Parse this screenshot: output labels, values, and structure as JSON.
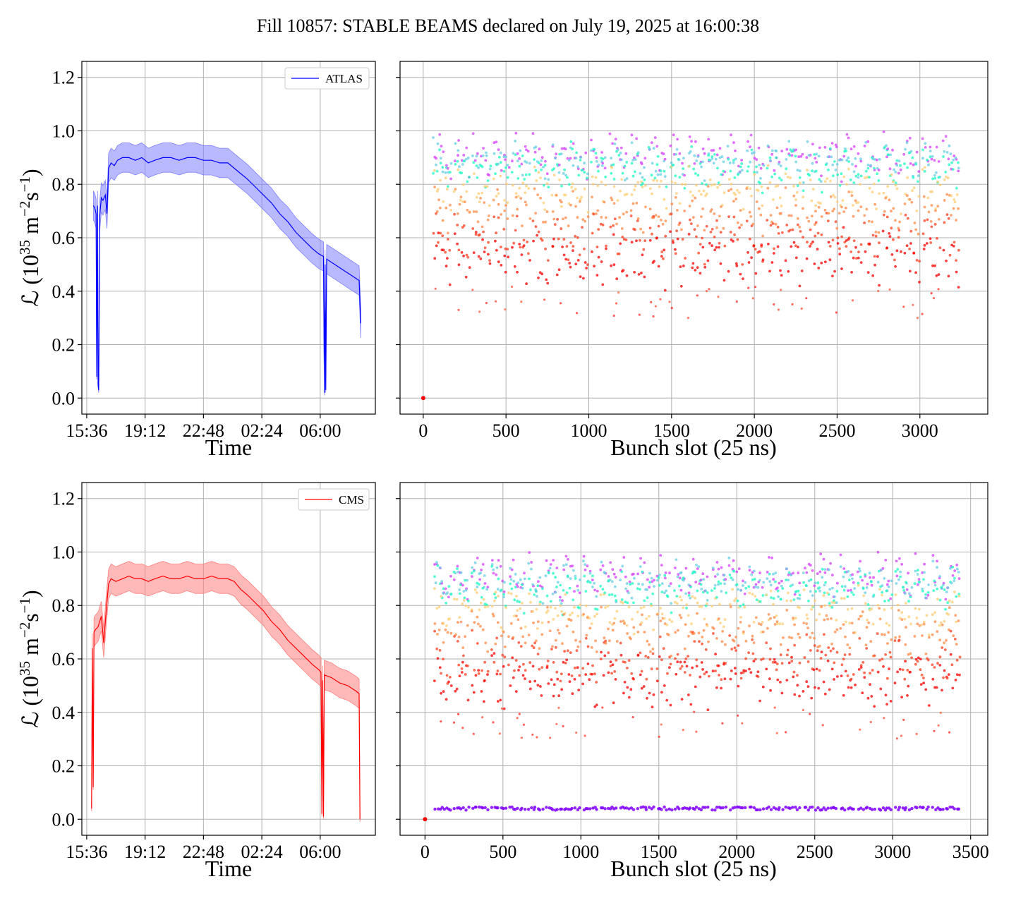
{
  "title": "Fill 10857: STABLE BEAMS declared on July 19, 2025 at 16:00:38",
  "chart_data": [
    {
      "id": "atlas-time",
      "type": "line",
      "series_name": "ATLAS",
      "color": "#0000ff",
      "band_color": "#8080ff",
      "xlabel": "Time",
      "ylabel": "ℒ (10",
      "ylabel_exp": "35",
      "ylabel_unit": " m",
      "ylabel_exp2": "−2",
      "ylabel_unit2": "s",
      "ylabel_exp3": "−1",
      "ylabel_close": ")",
      "xticks": [
        "15:36",
        "19:12",
        "22:48",
        "02:24",
        "06:00"
      ],
      "xtick_hours": [
        15.6,
        19.2,
        22.8,
        26.4,
        30.0
      ],
      "xlim_hours": [
        15.3,
        33.4
      ],
      "yticks": [
        "0.0",
        "0.2",
        "0.4",
        "0.6",
        "0.8",
        "1.0",
        "1.2"
      ],
      "ylim": [
        -0.06,
        1.26
      ],
      "grid": true,
      "legend": "top-right",
      "points": [
        [
          16.02,
          0.72
        ],
        [
          16.1,
          0.71
        ],
        [
          16.18,
          0.69
        ],
        [
          16.22,
          0.08
        ],
        [
          16.27,
          0.72
        ],
        [
          16.3,
          0.05
        ],
        [
          16.34,
          0.03
        ],
        [
          16.4,
          0.68
        ],
        [
          16.5,
          0.75
        ],
        [
          16.6,
          0.74
        ],
        [
          16.75,
          0.76
        ],
        [
          16.85,
          0.69
        ],
        [
          16.95,
          0.86
        ],
        [
          17.1,
          0.88
        ],
        [
          17.3,
          0.87
        ],
        [
          17.5,
          0.89
        ],
        [
          17.8,
          0.9
        ],
        [
          18.2,
          0.9
        ],
        [
          18.6,
          0.89
        ],
        [
          19.0,
          0.9
        ],
        [
          19.4,
          0.88
        ],
        [
          19.8,
          0.89
        ],
        [
          20.3,
          0.9
        ],
        [
          20.8,
          0.9
        ],
        [
          21.3,
          0.89
        ],
        [
          21.8,
          0.9
        ],
        [
          22.3,
          0.9
        ],
        [
          22.8,
          0.89
        ],
        [
          23.3,
          0.89
        ],
        [
          23.8,
          0.88
        ],
        [
          24.3,
          0.88
        ],
        [
          24.7,
          0.86
        ],
        [
          25.1,
          0.84
        ],
        [
          25.5,
          0.82
        ],
        [
          26.0,
          0.79
        ],
        [
          26.5,
          0.76
        ],
        [
          27.0,
          0.73
        ],
        [
          27.5,
          0.69
        ],
        [
          28.0,
          0.66
        ],
        [
          28.5,
          0.62
        ],
        [
          29.0,
          0.59
        ],
        [
          29.5,
          0.56
        ],
        [
          29.9,
          0.54
        ],
        [
          30.2,
          0.53
        ],
        [
          30.26,
          0.02
        ],
        [
          30.3,
          0.5
        ],
        [
          30.34,
          0.03
        ],
        [
          30.4,
          0.52
        ],
        [
          30.9,
          0.5
        ],
        [
          31.4,
          0.48
        ],
        [
          31.9,
          0.46
        ],
        [
          32.4,
          0.44
        ],
        [
          32.5,
          0.28
        ]
      ],
      "band_halfwidth": 0.055
    },
    {
      "id": "atlas-bunch",
      "type": "scatter",
      "xlabel": "Bunch slot (25 ns)",
      "xticks": [
        "0",
        "500",
        "1000",
        "1500",
        "2000",
        "2500",
        "3000"
      ],
      "xtick_values": [
        0,
        500,
        1000,
        1500,
        2000,
        2500,
        3000
      ],
      "xlim": [
        -140,
        3410
      ],
      "ylim": [
        -0.06,
        1.26
      ],
      "grid": true,
      "colormap": "rainbow (color encodes time within fill: purple = early, red = late)",
      "bunch_range": [
        60,
        3230
      ],
      "lumi_envelope": [
        0.4,
        1.05
      ],
      "isolated_point": [
        0,
        0.0
      ]
    },
    {
      "id": "cms-time",
      "type": "line",
      "series_name": "CMS",
      "color": "#ff0000",
      "band_color": "#ff8080",
      "xlabel": "Time",
      "xticks": [
        "15:36",
        "19:12",
        "22:48",
        "02:24",
        "06:00"
      ],
      "xtick_hours": [
        15.6,
        19.2,
        22.8,
        26.4,
        30.0
      ],
      "xlim_hours": [
        15.3,
        33.4
      ],
      "yticks": [
        "0.0",
        "0.2",
        "0.4",
        "0.6",
        "0.8",
        "1.0",
        "1.2"
      ],
      "ylim": [
        -0.06,
        1.26
      ],
      "grid": true,
      "legend": "top-right",
      "points": [
        [
          15.9,
          0.04
        ],
        [
          15.95,
          0.64
        ],
        [
          16.0,
          0.12
        ],
        [
          16.05,
          0.7
        ],
        [
          16.15,
          0.71
        ],
        [
          16.3,
          0.72
        ],
        [
          16.5,
          0.76
        ],
        [
          16.65,
          0.66
        ],
        [
          16.8,
          0.78
        ],
        [
          16.95,
          0.88
        ],
        [
          17.1,
          0.9
        ],
        [
          17.4,
          0.89
        ],
        [
          17.8,
          0.9
        ],
        [
          18.2,
          0.91
        ],
        [
          18.6,
          0.9
        ],
        [
          19.0,
          0.9
        ],
        [
          19.4,
          0.89
        ],
        [
          19.8,
          0.9
        ],
        [
          20.3,
          0.91
        ],
        [
          20.8,
          0.9
        ],
        [
          21.3,
          0.9
        ],
        [
          21.8,
          0.91
        ],
        [
          22.3,
          0.9
        ],
        [
          22.8,
          0.9
        ],
        [
          23.3,
          0.91
        ],
        [
          23.8,
          0.9
        ],
        [
          24.3,
          0.9
        ],
        [
          24.7,
          0.89
        ],
        [
          25.1,
          0.86
        ],
        [
          25.5,
          0.84
        ],
        [
          26.0,
          0.81
        ],
        [
          26.5,
          0.78
        ],
        [
          27.0,
          0.74
        ],
        [
          27.5,
          0.71
        ],
        [
          28.0,
          0.67
        ],
        [
          28.5,
          0.64
        ],
        [
          29.0,
          0.61
        ],
        [
          29.5,
          0.58
        ],
        [
          29.9,
          0.56
        ],
        [
          30.05,
          0.55
        ],
        [
          30.1,
          0.02
        ],
        [
          30.15,
          0.52
        ],
        [
          30.2,
          0.01
        ],
        [
          30.25,
          0.54
        ],
        [
          30.7,
          0.53
        ],
        [
          31.2,
          0.51
        ],
        [
          31.7,
          0.5
        ],
        [
          32.2,
          0.48
        ],
        [
          32.4,
          0.47
        ],
        [
          32.45,
          0.0
        ]
      ],
      "band_halfwidth": 0.055
    },
    {
      "id": "cms-bunch",
      "type": "scatter",
      "xlabel": "Bunch slot (25 ns)",
      "xticks": [
        "0",
        "500",
        "1000",
        "1500",
        "2000",
        "2500",
        "3000",
        "3500"
      ],
      "xtick_values": [
        0,
        500,
        1000,
        1500,
        2000,
        2500,
        3000,
        3500
      ],
      "xlim": [
        -160,
        3610
      ],
      "ylim": [
        -0.06,
        1.26
      ],
      "grid": true,
      "colormap": "rainbow (color encodes time within fill: purple = early, red = late)",
      "bunch_range": [
        60,
        3430
      ],
      "lumi_envelope": [
        0.4,
        1.08
      ],
      "low_lumi_trace": 0.04,
      "isolated_point": [
        0,
        0.0
      ]
    }
  ]
}
